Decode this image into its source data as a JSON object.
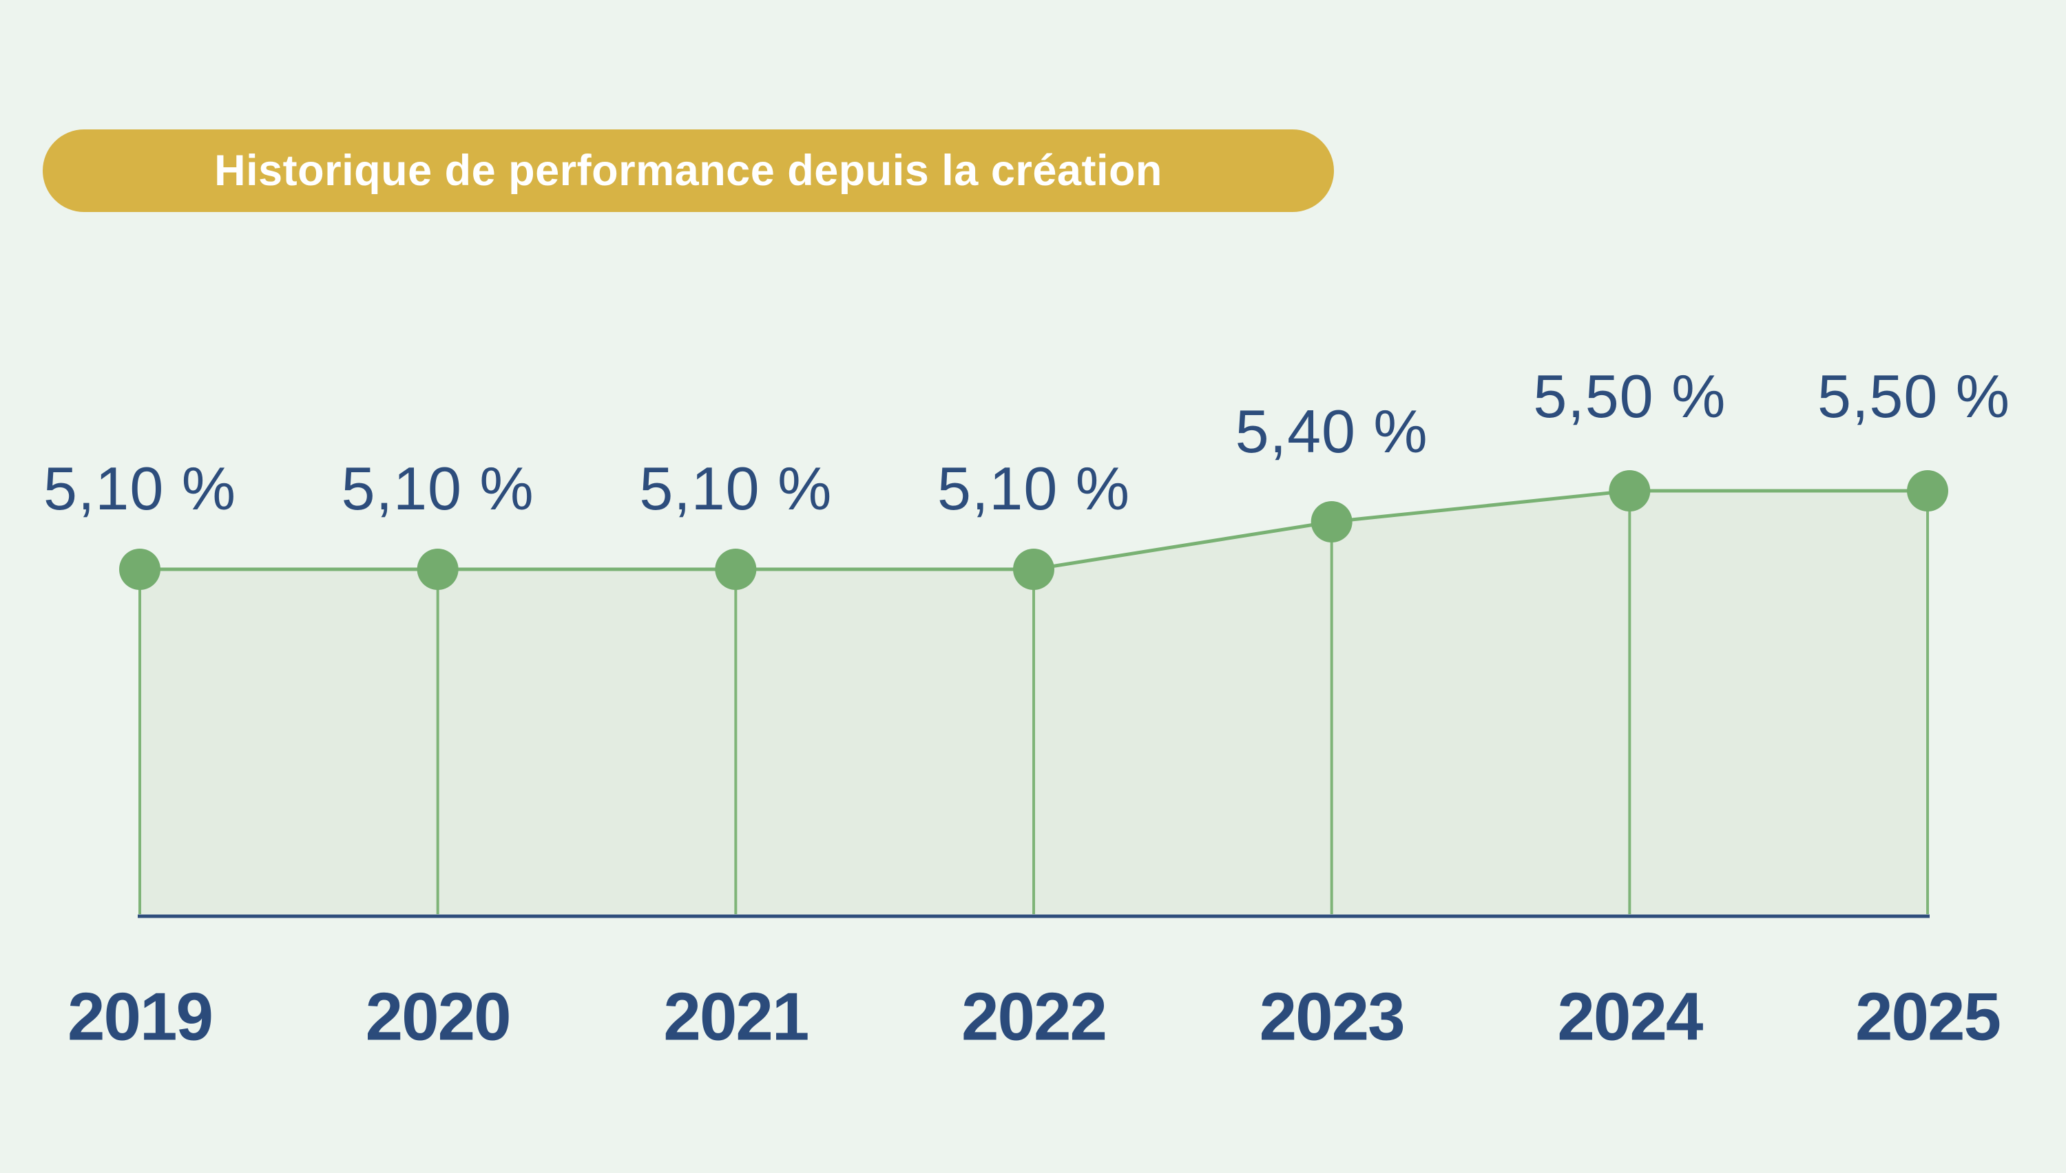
{
  "header": {
    "title": "Historique de performance depuis la création"
  },
  "theme": {
    "background": "#edf4ee",
    "banner_gold": "#d7b345",
    "banner_text": "#ffffff",
    "line_green": "#79b173",
    "dot_green": "#74ac6e",
    "dropline_green": "#7fb478",
    "area_fill": "#e3ece1",
    "axis_navy": "#2e4d7b",
    "label_blue": "#2d4d7c",
    "year_blue": "#2b4b7b"
  },
  "chart_data": {
    "type": "area",
    "title": "Historique de performance depuis la création",
    "categories": [
      "2019",
      "2020",
      "2021",
      "2022",
      "2023",
      "2024",
      "2025"
    ],
    "values": [
      5.1,
      5.1,
      5.1,
      5.1,
      5.4,
      5.5,
      5.5
    ],
    "value_labels": [
      "5,10 %",
      "5,10 %",
      "5,10 %",
      "5,10 %",
      "5,40 %",
      "5,50 %",
      "5,50 %"
    ],
    "xlabel": "",
    "ylabel": "",
    "ylim": [
      0,
      6
    ],
    "grid": false,
    "legend": "none",
    "markers": "circle",
    "droplines": true
  }
}
